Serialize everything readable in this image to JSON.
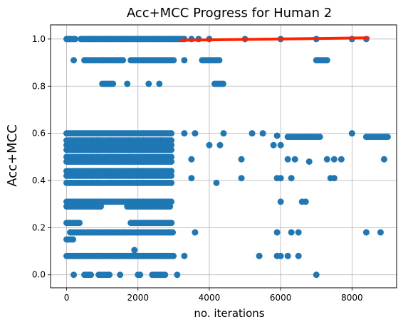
{
  "chart_data": {
    "type": "scatter",
    "title": "Acc+MCC Progress for Human 2",
    "xlabel": "no. iterations",
    "ylabel": "Acc+MCC",
    "xlim": [
      -450,
      9250
    ],
    "ylim": [
      -0.055,
      1.06
    ],
    "xticks": [
      0,
      2000,
      4000,
      6000,
      8000
    ],
    "xtick_labels": [
      "0",
      "2000",
      "4000",
      "6000",
      "8000"
    ],
    "yticks": [
      0.0,
      0.2,
      0.4,
      0.6,
      0.8,
      1.0
    ],
    "ytick_labels": [
      "0.0",
      "0.2",
      "0.4",
      "0.6",
      "0.8",
      "1.0"
    ],
    "grid": true,
    "legend": "none",
    "colors": {
      "scatter": "#1f77b4",
      "line": "#ff2200",
      "grid": "#b0b0b0"
    },
    "scatter_bands": [
      {
        "y": 1.0,
        "x_ranges": [
          [
            0,
            250
          ],
          [
            400,
            3300
          ]
        ]
      },
      {
        "y": 0.91,
        "x_ranges": [
          [
            500,
            1600
          ],
          [
            1800,
            3000
          ],
          [
            3800,
            4300
          ],
          [
            7000,
            7300
          ]
        ]
      },
      {
        "y": 0.81,
        "x_ranges": [
          [
            1000,
            1300
          ],
          [
            4150,
            4400
          ]
        ]
      },
      {
        "y": 0.6,
        "x_ranges": [
          [
            0,
            2950
          ]
        ]
      },
      {
        "y": 0.585,
        "x_ranges": [
          [
            6200,
            7100
          ],
          [
            8400,
            9000
          ]
        ]
      },
      {
        "y": 0.57,
        "x_ranges": [
          [
            0,
            2950
          ]
        ]
      },
      {
        "y": 0.55,
        "x_ranges": [
          [
            0,
            2950
          ]
        ]
      },
      {
        "y": 0.53,
        "x_ranges": [
          [
            0,
            2950
          ]
        ]
      },
      {
        "y": 0.5,
        "x_ranges": [
          [
            0,
            2950
          ]
        ]
      },
      {
        "y": 0.48,
        "x_ranges": [
          [
            0,
            2950
          ]
        ]
      },
      {
        "y": 0.44,
        "x_ranges": [
          [
            0,
            2950
          ]
        ]
      },
      {
        "y": 0.42,
        "x_ranges": [
          [
            0,
            2950
          ]
        ]
      },
      {
        "y": 0.39,
        "x_ranges": [
          [
            0,
            2950
          ]
        ]
      },
      {
        "y": 0.31,
        "x_ranges": [
          [
            0,
            2950
          ]
        ]
      },
      {
        "y": 0.29,
        "x_ranges": [
          [
            0,
            1000
          ],
          [
            1700,
            2950
          ]
        ]
      },
      {
        "y": 0.22,
        "x_ranges": [
          [
            0,
            400
          ],
          [
            1800,
            2950
          ]
        ]
      },
      {
        "y": 0.18,
        "x_ranges": [
          [
            100,
            3000
          ]
        ]
      },
      {
        "y": 0.15,
        "x_ranges": [
          [
            0,
            200
          ]
        ]
      },
      {
        "y": 0.08,
        "x_ranges": [
          [
            0,
            3000
          ]
        ]
      },
      {
        "y": 0.0,
        "x_ranges": [
          [
            500,
            700
          ],
          [
            900,
            1200
          ],
          [
            2000,
            2100
          ],
          [
            2400,
            2800
          ]
        ]
      }
    ],
    "scatter_points": [
      {
        "x": 3300,
        "y": 1.0
      },
      {
        "x": 3500,
        "y": 1.0
      },
      {
        "x": 3700,
        "y": 1.0
      },
      {
        "x": 4000,
        "y": 1.0
      },
      {
        "x": 5000,
        "y": 1.0
      },
      {
        "x": 6000,
        "y": 1.0
      },
      {
        "x": 7000,
        "y": 1.0
      },
      {
        "x": 8000,
        "y": 1.0
      },
      {
        "x": 8400,
        "y": 1.0
      },
      {
        "x": 200,
        "y": 0.91
      },
      {
        "x": 3300,
        "y": 0.91
      },
      {
        "x": 1700,
        "y": 0.81
      },
      {
        "x": 2300,
        "y": 0.81
      },
      {
        "x": 2600,
        "y": 0.81
      },
      {
        "x": 3300,
        "y": 0.6
      },
      {
        "x": 3600,
        "y": 0.6
      },
      {
        "x": 4400,
        "y": 0.6
      },
      {
        "x": 5200,
        "y": 0.6
      },
      {
        "x": 5500,
        "y": 0.6
      },
      {
        "x": 5900,
        "y": 0.59
      },
      {
        "x": 8000,
        "y": 0.6
      },
      {
        "x": 4000,
        "y": 0.55
      },
      {
        "x": 4300,
        "y": 0.55
      },
      {
        "x": 5800,
        "y": 0.55
      },
      {
        "x": 6000,
        "y": 0.55
      },
      {
        "x": 3500,
        "y": 0.49
      },
      {
        "x": 4900,
        "y": 0.49
      },
      {
        "x": 6200,
        "y": 0.49
      },
      {
        "x": 6400,
        "y": 0.49
      },
      {
        "x": 6800,
        "y": 0.48
      },
      {
        "x": 7300,
        "y": 0.49
      },
      {
        "x": 7500,
        "y": 0.49
      },
      {
        "x": 7700,
        "y": 0.49
      },
      {
        "x": 8900,
        "y": 0.49
      },
      {
        "x": 3500,
        "y": 0.41
      },
      {
        "x": 4900,
        "y": 0.41
      },
      {
        "x": 5900,
        "y": 0.41
      },
      {
        "x": 6000,
        "y": 0.41
      },
      {
        "x": 6300,
        "y": 0.41
      },
      {
        "x": 7400,
        "y": 0.41
      },
      {
        "x": 7500,
        "y": 0.41
      },
      {
        "x": 4200,
        "y": 0.39
      },
      {
        "x": 6000,
        "y": 0.31
      },
      {
        "x": 6600,
        "y": 0.31
      },
      {
        "x": 6700,
        "y": 0.31
      },
      {
        "x": 3600,
        "y": 0.18
      },
      {
        "x": 5900,
        "y": 0.18
      },
      {
        "x": 6300,
        "y": 0.18
      },
      {
        "x": 6500,
        "y": 0.18
      },
      {
        "x": 8400,
        "y": 0.18
      },
      {
        "x": 8800,
        "y": 0.18
      },
      {
        "x": 1900,
        "y": 0.105
      },
      {
        "x": 3300,
        "y": 0.08
      },
      {
        "x": 5400,
        "y": 0.08
      },
      {
        "x": 5900,
        "y": 0.08
      },
      {
        "x": 6000,
        "y": 0.08
      },
      {
        "x": 6200,
        "y": 0.08
      },
      {
        "x": 6500,
        "y": 0.08
      },
      {
        "x": 200,
        "y": 0.0
      },
      {
        "x": 1500,
        "y": 0.0
      },
      {
        "x": 3100,
        "y": 0.0
      },
      {
        "x": 7000,
        "y": 0.0
      }
    ],
    "line_series": {
      "x": [
        3200,
        8450
      ],
      "y": [
        0.995,
        1.005
      ]
    }
  }
}
